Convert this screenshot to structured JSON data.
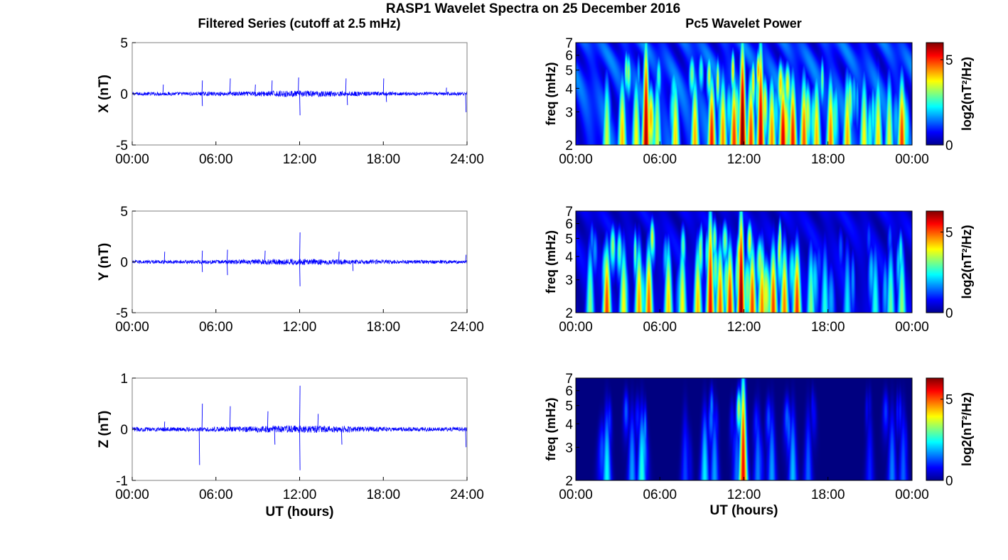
{
  "figure": {
    "title": "RASP1 Wavelet Spectra on 25 December 2016",
    "left_title": "Filtered Series (cutoff at 2.5 mHz)",
    "right_title": "Pc5 Wavelet Power"
  },
  "colors": {
    "trace": "#0000ff",
    "axes": "#000000"
  },
  "chart_data": [
    {
      "type": "line",
      "component": "X",
      "ylabel": "X (nT)",
      "xlabel": "",
      "xlim": [
        0,
        24
      ],
      "ylim": [
        -5,
        5
      ],
      "xticks": [
        "00:00",
        "06:00",
        "12:00",
        "18:00",
        "24:00"
      ],
      "yticks": [
        "5",
        "0",
        "-5"
      ],
      "noise_amplitude": 0.25,
      "spikes": [
        {
          "t": 2.2,
          "v": 0.9
        },
        {
          "t": 5.0,
          "v": 1.3
        },
        {
          "t": 5.0,
          "v": -1.2
        },
        {
          "t": 7.0,
          "v": 1.5
        },
        {
          "t": 8.8,
          "v": 0.9
        },
        {
          "t": 10.0,
          "v": 1.3
        },
        {
          "t": 11.9,
          "v": 1.6
        },
        {
          "t": 12.0,
          "v": -2.1
        },
        {
          "t": 15.3,
          "v": 1.5
        },
        {
          "t": 15.4,
          "v": -1.1
        },
        {
          "t": 18.0,
          "v": 1.5
        },
        {
          "t": 18.2,
          "v": -0.8
        },
        {
          "t": 23.9,
          "v": -1.8
        },
        {
          "t": 22.5,
          "v": 0.6
        }
      ]
    },
    {
      "type": "line",
      "component": "Y",
      "ylabel": "Y (nT)",
      "xlabel": "",
      "xlim": [
        0,
        24
      ],
      "ylim": [
        -5,
        5
      ],
      "xticks": [
        "00:00",
        "06:00",
        "12:00",
        "18:00",
        "24:00"
      ],
      "yticks": [
        "5",
        "0",
        "-5"
      ],
      "noise_amplitude": 0.25,
      "spikes": [
        {
          "t": 2.3,
          "v": 1.0
        },
        {
          "t": 5.0,
          "v": 1.1
        },
        {
          "t": 5.0,
          "v": -1.0
        },
        {
          "t": 6.8,
          "v": 1.2
        },
        {
          "t": 6.8,
          "v": -1.3
        },
        {
          "t": 9.5,
          "v": 1.1
        },
        {
          "t": 12.0,
          "v": 2.9
        },
        {
          "t": 12.0,
          "v": -2.4
        },
        {
          "t": 14.8,
          "v": 1.0
        },
        {
          "t": 15.8,
          "v": -0.9
        },
        {
          "t": 23.9,
          "v": 0.7
        }
      ]
    },
    {
      "type": "line",
      "component": "Z",
      "ylabel": "Z (nT)",
      "xlabel": "UT (hours)",
      "xlim": [
        0,
        24
      ],
      "ylim": [
        -1,
        1
      ],
      "xticks": [
        "00:00",
        "06:00",
        "12:00",
        "18:00",
        "24:00"
      ],
      "yticks": [
        "1",
        "0",
        "-1"
      ],
      "noise_amplitude": 0.06,
      "spikes": [
        {
          "t": 2.3,
          "v": 0.15
        },
        {
          "t": 4.8,
          "v": -0.7
        },
        {
          "t": 5.0,
          "v": 0.5
        },
        {
          "t": 7.0,
          "v": 0.45
        },
        {
          "t": 9.7,
          "v": 0.35
        },
        {
          "t": 10.2,
          "v": -0.3
        },
        {
          "t": 12.0,
          "v": 0.85
        },
        {
          "t": 12.0,
          "v": -0.8
        },
        {
          "t": 13.3,
          "v": 0.3
        },
        {
          "t": 15.0,
          "v": -0.3
        },
        {
          "t": 23.9,
          "v": -0.35
        }
      ]
    },
    {
      "type": "heatmap",
      "component": "X",
      "ylabel": "freq (mHz)",
      "xlabel": "",
      "xlim": [
        0,
        24
      ],
      "ylim": [
        2,
        7
      ],
      "yscale": "log",
      "xticks": [
        "00:00",
        "06:00",
        "12:00",
        "18:00",
        "00:00"
      ],
      "yticks": [
        "7",
        "6",
        "5",
        "4",
        "3",
        "2"
      ],
      "colorbar_label": "log2(nT²/Hz)",
      "colorbar_ticks": [
        "5",
        "0"
      ],
      "colorscale": "jet",
      "clim": [
        0,
        6
      ],
      "background_level": 1.6,
      "events": [
        {
          "t": 2.2,
          "a": 3.5
        },
        {
          "t": 3.3,
          "a": 4.2
        },
        {
          "t": 4.3,
          "a": 3.8
        },
        {
          "t": 5.0,
          "a": 5.8
        },
        {
          "t": 5.8,
          "a": 3.5
        },
        {
          "t": 7.1,
          "a": 4.0
        },
        {
          "t": 8.5,
          "a": 4.3
        },
        {
          "t": 9.7,
          "a": 5.2
        },
        {
          "t": 10.5,
          "a": 4.5
        },
        {
          "t": 11.3,
          "a": 5.0
        },
        {
          "t": 11.9,
          "a": 6.2
        },
        {
          "t": 12.5,
          "a": 5.0
        },
        {
          "t": 13.2,
          "a": 5.6
        },
        {
          "t": 14.0,
          "a": 4.5
        },
        {
          "t": 14.8,
          "a": 5.5
        },
        {
          "t": 15.5,
          "a": 5.2
        },
        {
          "t": 16.3,
          "a": 4.8
        },
        {
          "t": 17.2,
          "a": 4.2
        },
        {
          "t": 18.2,
          "a": 4.6
        },
        {
          "t": 19.4,
          "a": 4.3
        },
        {
          "t": 20.6,
          "a": 3.8
        },
        {
          "t": 21.6,
          "a": 4.0
        },
        {
          "t": 22.4,
          "a": 3.6
        },
        {
          "t": 23.3,
          "a": 5.0
        }
      ]
    },
    {
      "type": "heatmap",
      "component": "Y",
      "ylabel": "freq (mHz)",
      "xlabel": "",
      "xlim": [
        0,
        24
      ],
      "ylim": [
        2,
        7
      ],
      "yscale": "log",
      "xticks": [
        "00:00",
        "06:00",
        "12:00",
        "18:00",
        "00:00"
      ],
      "yticks": [
        "7",
        "6",
        "5",
        "4",
        "3",
        "2"
      ],
      "colorbar_label": "log2(nT²/Hz)",
      "colorbar_ticks": [
        "5",
        "0"
      ],
      "colorscale": "jet",
      "clim": [
        0,
        6.3
      ],
      "background_level": 0.9,
      "events": [
        {
          "t": 1.0,
          "a": 3.2
        },
        {
          "t": 2.2,
          "a": 5.2
        },
        {
          "t": 3.4,
          "a": 4.0
        },
        {
          "t": 4.5,
          "a": 4.6
        },
        {
          "t": 5.2,
          "a": 5.0
        },
        {
          "t": 6.6,
          "a": 4.3
        },
        {
          "t": 7.6,
          "a": 4.0
        },
        {
          "t": 8.7,
          "a": 4.4
        },
        {
          "t": 9.6,
          "a": 5.6
        },
        {
          "t": 10.3,
          "a": 5.0
        },
        {
          "t": 11.0,
          "a": 5.4
        },
        {
          "t": 11.8,
          "a": 6.3
        },
        {
          "t": 12.6,
          "a": 5.2
        },
        {
          "t": 13.3,
          "a": 4.8
        },
        {
          "t": 14.1,
          "a": 5.2
        },
        {
          "t": 14.9,
          "a": 4.8
        },
        {
          "t": 15.8,
          "a": 5.3
        },
        {
          "t": 16.8,
          "a": 3.2
        },
        {
          "t": 17.8,
          "a": 2.6
        },
        {
          "t": 19.4,
          "a": 2.3
        },
        {
          "t": 21.4,
          "a": 2.6
        },
        {
          "t": 22.5,
          "a": 3.0
        },
        {
          "t": 23.3,
          "a": 3.3
        }
      ]
    },
    {
      "type": "heatmap",
      "component": "Z",
      "ylabel": "freq (mHz)",
      "xlabel": "UT (hours)",
      "xlim": [
        0,
        24
      ],
      "ylim": [
        2,
        7
      ],
      "yscale": "log",
      "xticks": [
        "00:00",
        "06:00",
        "12:00",
        "18:00",
        "00:00"
      ],
      "yticks": [
        "7",
        "6",
        "5",
        "4",
        "3",
        "2"
      ],
      "colorbar_label": "log2(nT²/Hz)",
      "colorbar_ticks": [
        "5",
        "0"
      ],
      "colorscale": "jet",
      "clim": [
        0,
        6.3
      ],
      "background_level": 0.0,
      "events": [
        {
          "t": 2.2,
          "a": 2.4
        },
        {
          "t": 4.0,
          "a": 1.8
        },
        {
          "t": 4.7,
          "a": 2.6
        },
        {
          "t": 7.8,
          "a": 1.2
        },
        {
          "t": 9.2,
          "a": 2.3
        },
        {
          "t": 9.9,
          "a": 1.8
        },
        {
          "t": 11.5,
          "a": 1.5
        },
        {
          "t": 11.95,
          "a": 5.6
        },
        {
          "t": 13.0,
          "a": 1.6
        },
        {
          "t": 14.0,
          "a": 1.8
        },
        {
          "t": 15.5,
          "a": 2.0
        },
        {
          "t": 16.6,
          "a": 1.4
        },
        {
          "t": 21.0,
          "a": 1.0
        },
        {
          "t": 22.6,
          "a": 1.6
        },
        {
          "t": 23.4,
          "a": 1.4
        }
      ]
    }
  ]
}
